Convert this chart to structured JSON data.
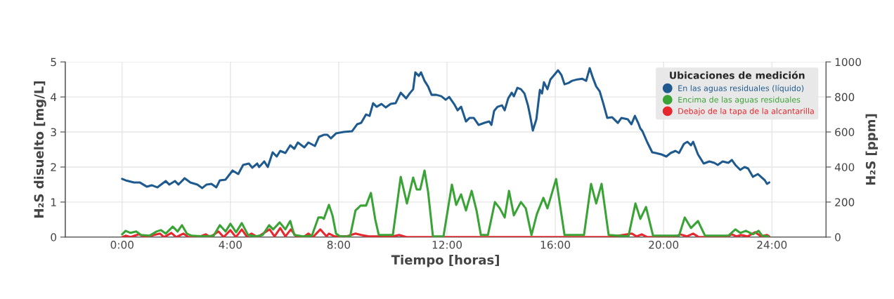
{
  "chart_data": {
    "type": "line",
    "xlabel": "Tiempo [horas]",
    "ylabel": "H₂S disuelto [mg/L]",
    "y2label": "H₂S [ppm]",
    "legend_title": "Ubicaciones de medición",
    "xlim": [
      -2.1,
      26.0
    ],
    "xticks": [
      {
        "value": 0,
        "label": "0:00"
      },
      {
        "value": 4,
        "label": "4:00"
      },
      {
        "value": 8,
        "label": "8:00"
      },
      {
        "value": 12,
        "label": "12:00"
      },
      {
        "value": 16,
        "label": "16:00"
      },
      {
        "value": 20,
        "label": "20:00"
      },
      {
        "value": 24,
        "label": "24:00"
      }
    ],
    "ylim": [
      0,
      5
    ],
    "yticks": [
      0,
      1,
      2,
      3,
      4,
      5
    ],
    "y2lim": [
      0,
      1000
    ],
    "y2ticks": [
      0,
      200,
      400,
      600,
      800,
      1000
    ],
    "grid": true,
    "legend": "top right",
    "line_style": "solid",
    "series": [
      {
        "name": "En las aguas residuales (líquido)",
        "color": "#1f5a8f",
        "axis": "y",
        "x": [
          0.0,
          0.13,
          0.44,
          0.65,
          0.91,
          1.09,
          1.3,
          1.61,
          1.74,
          1.95,
          2.08,
          2.31,
          2.52,
          2.78,
          2.96,
          3.12,
          3.3,
          3.48,
          3.61,
          3.82,
          4.08,
          4.29,
          4.47,
          4.68,
          4.81,
          4.99,
          5.06,
          5.25,
          5.38,
          5.56,
          5.71,
          5.84,
          6.03,
          6.21,
          6.36,
          6.49,
          6.73,
          6.88,
          7.12,
          7.27,
          7.45,
          7.58,
          7.71,
          7.9,
          8.18,
          8.49,
          8.68,
          8.83,
          9.01,
          9.14,
          9.27,
          9.4,
          9.58,
          9.74,
          9.92,
          10.1,
          10.29,
          10.49,
          10.62,
          10.75,
          10.83,
          10.96,
          11.04,
          11.17,
          11.3,
          11.43,
          11.61,
          11.79,
          11.95,
          12.08,
          12.26,
          12.39,
          12.52,
          12.7,
          12.83,
          12.99,
          13.17,
          13.38,
          13.56,
          13.64,
          13.74,
          13.87,
          14.03,
          14.13,
          14.26,
          14.39,
          14.47,
          14.6,
          14.73,
          14.86,
          14.99,
          15.06,
          15.17,
          15.3,
          15.43,
          15.51,
          15.58,
          15.71,
          15.82,
          15.95,
          16.1,
          16.23,
          16.34,
          16.49,
          16.62,
          16.81,
          16.99,
          17.14,
          17.27,
          17.4,
          17.51,
          17.64,
          17.77,
          17.92,
          18.1,
          18.31,
          18.44,
          18.68,
          18.81,
          18.94,
          19.06,
          19.14,
          19.22,
          19.4,
          19.58,
          19.71,
          19.92,
          20.1,
          20.26,
          20.44,
          20.57,
          20.75,
          20.88,
          21.01,
          21.09,
          21.27,
          21.48,
          21.69,
          21.87,
          22.0,
          22.18,
          22.39,
          22.52,
          22.65,
          22.83,
          22.99,
          23.12,
          23.3,
          23.48,
          23.74,
          23.82,
          23.9
        ],
        "values": [
          1.66,
          1.62,
          1.56,
          1.56,
          1.44,
          1.48,
          1.42,
          1.6,
          1.5,
          1.6,
          1.5,
          1.68,
          1.56,
          1.5,
          1.4,
          1.5,
          1.52,
          1.42,
          1.62,
          1.64,
          1.9,
          1.8,
          2.06,
          2.1,
          1.98,
          2.1,
          2.0,
          2.16,
          2.0,
          2.42,
          2.3,
          2.46,
          2.4,
          2.62,
          2.52,
          2.7,
          2.56,
          2.7,
          2.6,
          2.86,
          2.92,
          2.92,
          2.82,
          2.96,
          3.0,
          3.02,
          3.22,
          3.26,
          3.5,
          3.46,
          3.82,
          3.72,
          3.8,
          3.7,
          3.8,
          3.82,
          4.12,
          3.96,
          4.1,
          4.22,
          4.7,
          4.6,
          4.7,
          4.46,
          4.3,
          4.06,
          4.06,
          4.02,
          3.92,
          4.0,
          3.8,
          3.62,
          3.72,
          3.3,
          3.4,
          3.4,
          3.2,
          3.26,
          3.3,
          3.2,
          3.6,
          3.72,
          3.76,
          3.62,
          3.96,
          4.12,
          4.02,
          4.26,
          4.22,
          4.1,
          3.76,
          3.5,
          3.04,
          3.36,
          4.2,
          4.1,
          4.42,
          4.22,
          4.5,
          4.62,
          4.76,
          4.62,
          4.36,
          4.4,
          4.46,
          4.5,
          4.52,
          4.46,
          4.82,
          4.52,
          4.3,
          4.16,
          3.82,
          3.4,
          3.42,
          3.26,
          3.4,
          3.36,
          3.22,
          3.46,
          3.26,
          3.1,
          3.02,
          2.7,
          2.42,
          2.4,
          2.36,
          2.3,
          2.4,
          2.46,
          2.4,
          2.66,
          2.72,
          2.62,
          2.72,
          2.36,
          2.1,
          2.16,
          2.12,
          2.06,
          2.16,
          2.12,
          2.2,
          2.06,
          1.92,
          2.0,
          1.96,
          1.72,
          1.8,
          1.62,
          1.52,
          1.56
        ]
      },
      {
        "name": "Encima de las aguas residuales",
        "color": "#3aa335",
        "axis": "y2",
        "x": [
          0.0,
          0.13,
          0.31,
          0.52,
          0.7,
          1.01,
          1.27,
          1.43,
          1.61,
          1.87,
          2.05,
          2.21,
          2.39,
          2.57,
          3.04,
          3.38,
          3.61,
          3.82,
          4.0,
          4.21,
          4.42,
          4.65,
          4.94,
          5.19,
          5.43,
          5.58,
          5.82,
          6.03,
          6.21,
          6.36,
          6.68,
          7.01,
          7.25,
          7.38,
          7.45,
          7.64,
          7.77,
          7.9,
          8.05,
          8.42,
          8.62,
          8.81,
          9.01,
          9.19,
          9.35,
          9.48,
          10.0,
          10.29,
          10.52,
          10.75,
          10.88,
          11.01,
          11.17,
          11.3,
          11.48,
          11.87,
          12.18,
          12.34,
          12.52,
          12.7,
          12.91,
          13.09,
          13.25,
          13.51,
          13.77,
          13.95,
          14.13,
          14.29,
          14.47,
          14.73,
          14.91,
          15.12,
          15.32,
          15.56,
          15.71,
          16.03,
          16.34,
          17.06,
          17.32,
          17.51,
          17.71,
          17.97,
          18.7,
          18.96,
          19.14,
          19.35,
          19.61,
          20.57,
          20.78,
          21.01,
          21.27,
          21.53,
          22.39,
          22.65,
          22.83,
          23.04,
          23.3,
          23.51,
          23.64,
          23.87
        ],
        "values": [
          16,
          36,
          24,
          32,
          12,
          8,
          32,
          40,
          20,
          60,
          32,
          68,
          20,
          8,
          4,
          8,
          68,
          32,
          76,
          28,
          80,
          12,
          4,
          12,
          68,
          44,
          84,
          44,
          92,
          12,
          4,
          8,
          112,
          112,
          104,
          184,
          124,
          20,
          4,
          4,
          152,
          180,
          180,
          252,
          100,
          12,
          12,
          344,
          192,
          340,
          272,
          272,
          380,
          260,
          4,
          4,
          300,
          184,
          244,
          152,
          264,
          152,
          12,
          12,
          200,
          164,
          112,
          264,
          124,
          200,
          164,
          12,
          132,
          224,
          164,
          332,
          12,
          12,
          304,
          192,
          304,
          12,
          4,
          192,
          104,
          172,
          8,
          8,
          112,
          52,
          92,
          8,
          8,
          44,
          24,
          36,
          16,
          36,
          8,
          4
        ]
      },
      {
        "name": "Debajo de la tapa de la alcantarilla",
        "color": "#e8262d",
        "axis": "y2",
        "x": [
          0.0,
          0.13,
          0.31,
          0.62,
          0.85,
          1.4,
          1.55,
          1.82,
          2.0,
          2.26,
          2.45,
          2.8,
          3.09,
          3.25,
          3.56,
          3.75,
          4.0,
          4.2,
          4.42,
          4.6,
          4.78,
          5.0,
          5.45,
          5.63,
          5.84,
          6.03,
          6.23,
          6.45,
          6.7,
          6.88,
          7.05,
          7.32,
          7.55,
          7.64,
          7.85,
          8.3,
          8.62,
          8.83,
          9.1,
          10.0,
          10.23,
          10.5,
          18.0,
          18.83,
          19.0,
          19.19,
          19.4,
          20.4,
          20.62,
          20.85,
          21.09,
          21.3,
          22.3,
          22.52,
          22.7,
          22.86,
          23.1,
          23.38,
          23.6,
          23.82,
          23.9
        ],
        "values": [
          0,
          8,
          0,
          16,
          0,
          20,
          0,
          24,
          0,
          20,
          0,
          0,
          16,
          0,
          32,
          0,
          40,
          0,
          44,
          4,
          20,
          0,
          44,
          4,
          52,
          4,
          44,
          0,
          0,
          20,
          0,
          44,
          4,
          20,
          4,
          4,
          20,
          12,
          4,
          4,
          12,
          0,
          0,
          20,
          4,
          16,
          0,
          0,
          16,
          4,
          20,
          0,
          0,
          16,
          4,
          12,
          4,
          28,
          4,
          12,
          4
        ]
      }
    ]
  }
}
